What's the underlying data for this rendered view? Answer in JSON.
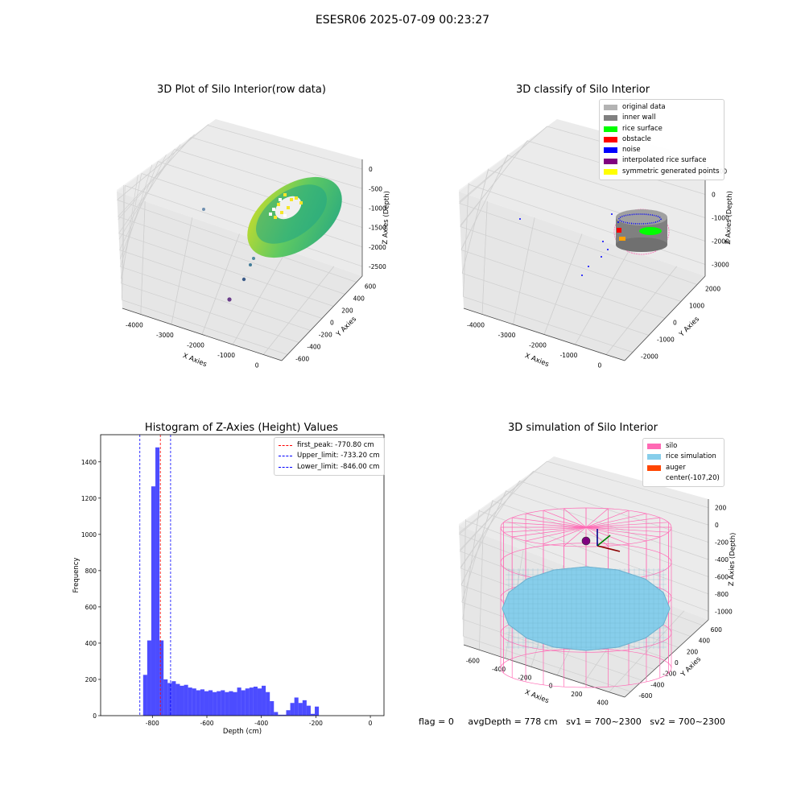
{
  "figure": {
    "suptitle": "ESESR06 2025-07-09 00:23:27",
    "footer": {
      "flag": "flag = 0",
      "avg": "avgDepth = 778 cm",
      "sv1": "sv1 = 700~2300",
      "sv2": "sv2 = 700~2300"
    }
  },
  "chart_data": [
    {
      "type": "scatter",
      "title": "3D Plot of Silo Interior(row data)",
      "xlabel": "X Axies",
      "ylabel": "Y Axies",
      "zlabel": "Z Axies (Depth)",
      "x_ticks": [
        "-4000",
        "-3000",
        "-2000",
        "-1000",
        "0"
      ],
      "y_ticks": [
        "-600",
        "-400",
        "-200",
        "0",
        "200",
        "400",
        "600"
      ],
      "z_ticks": [
        "0",
        "-500",
        "-1000",
        "-1500",
        "-2000",
        "-2500"
      ],
      "outlier_points": [
        {
          "x": -3600,
          "y": 300,
          "z": -1100
        },
        {
          "x": -600,
          "y": 0,
          "z": -2700
        },
        {
          "x": -1000,
          "y": -200,
          "z": -2800
        },
        {
          "x": -1600,
          "y": -300,
          "z": -3000
        }
      ]
    },
    {
      "type": "scatter",
      "title": "3D classify of Silo Interior",
      "xlabel": "X Axies",
      "ylabel": "Y Axies",
      "zlabel": "Z Axies (Depth)",
      "x_ticks": [
        "-4000",
        "-3000",
        "-2000",
        "-1000",
        "0"
      ],
      "y_ticks": [
        "-2000",
        "-1000",
        "0",
        "1000",
        "2000"
      ],
      "z_ticks": [
        "1000",
        "0",
        "-1000",
        "-2000",
        "-3000"
      ],
      "legend": [
        {
          "label": "original data",
          "color": "#b3b3b3"
        },
        {
          "label": "inner wall",
          "color": "#808080"
        },
        {
          "label": "rice surface",
          "color": "#00ff00"
        },
        {
          "label": "obstacle",
          "color": "#ff0000"
        },
        {
          "label": "noise",
          "color": "#0000ff"
        },
        {
          "label": "interpolated rice surface",
          "color": "#800080"
        },
        {
          "label": "symmetric generated points",
          "color": "#ffff00"
        }
      ]
    },
    {
      "type": "bar",
      "title": "Histogram of Z-Axies (Height) Values",
      "xlabel": "Depth (cm)",
      "ylabel": "Frequency",
      "xlim": [
        -990,
        50
      ],
      "ylim": [
        0,
        1550
      ],
      "x_ticks": [
        -800,
        -600,
        -400,
        -200,
        0
      ],
      "y_ticks": [
        0,
        200,
        400,
        600,
        800,
        1000,
        1200,
        1400
      ],
      "bin_start": -834,
      "bin_width": 15,
      "values": [
        225,
        415,
        1265,
        1480,
        415,
        200,
        180,
        190,
        175,
        165,
        170,
        155,
        150,
        140,
        145,
        135,
        140,
        130,
        135,
        140,
        130,
        135,
        130,
        155,
        140,
        150,
        155,
        160,
        150,
        165,
        130,
        80,
        20,
        5,
        5,
        30,
        70,
        100,
        70,
        85,
        55,
        10,
        50
      ],
      "bar_color": "#0000ff",
      "lines": [
        {
          "label": "first_peak: -770.80 cm",
          "value": -770.8,
          "color": "#ff0000"
        },
        {
          "label": "Upper_limit: -733.20 cm",
          "value": -733.2,
          "color": "#0000ff"
        },
        {
          "label": "Lower_limit: -846.00 cm",
          "value": -846.0,
          "color": "#0000ff"
        }
      ]
    },
    {
      "type": "scatter",
      "title": "3D simulation of Silo Interior",
      "xlabel": "X Axies",
      "ylabel": "Y Axies",
      "zlabel": "Z Axies (Depth)",
      "x_ticks": [
        "-600",
        "-400",
        "-200",
        "0",
        "200",
        "400"
      ],
      "y_ticks": [
        "-600",
        "-400",
        "-200",
        "0",
        "200",
        "400",
        "600"
      ],
      "z_ticks": [
        "200",
        "0",
        "-200",
        "-400",
        "-600",
        "-800",
        "-1000"
      ],
      "legend": [
        {
          "label": "silo",
          "color": "#ff69b4"
        },
        {
          "label": "rice simulation",
          "color": "#87ceeb"
        },
        {
          "label": "auger",
          "color": "#ff4500"
        },
        {
          "label": "center(-107,20)",
          "color": ""
        }
      ]
    }
  ]
}
